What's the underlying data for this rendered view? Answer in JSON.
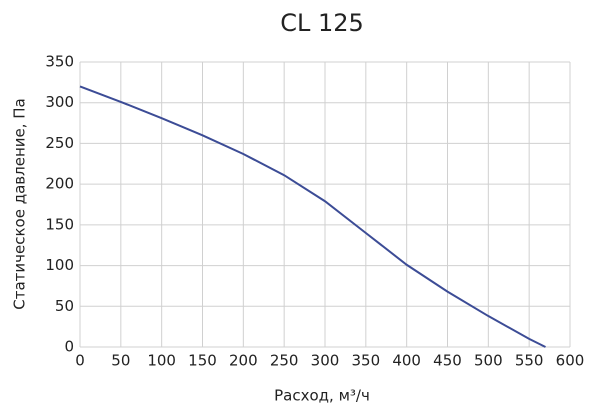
{
  "chart_data": {
    "type": "line",
    "title": "CL 125",
    "x_label": "Расход, м³/ч",
    "y_label": "Статическое давление, Па",
    "series": [
      {
        "name": "CL 125",
        "color": "#3c4c96",
        "x": [
          0,
          50,
          100,
          150,
          200,
          250,
          300,
          350,
          400,
          450,
          500,
          550,
          570
        ],
        "values": [
          320,
          301,
          281,
          260,
          237,
          211,
          179,
          140,
          101,
          68,
          38,
          10,
          0
        ]
      }
    ],
    "xlim": [
      0,
      600
    ],
    "xticks": [
      0,
      50,
      100,
      150,
      200,
      250,
      300,
      350,
      400,
      450,
      500,
      550,
      600
    ],
    "ylim": [
      0,
      350
    ],
    "yticks": [
      0,
      50,
      100,
      150,
      200,
      250,
      300,
      350
    ],
    "grid": true
  }
}
